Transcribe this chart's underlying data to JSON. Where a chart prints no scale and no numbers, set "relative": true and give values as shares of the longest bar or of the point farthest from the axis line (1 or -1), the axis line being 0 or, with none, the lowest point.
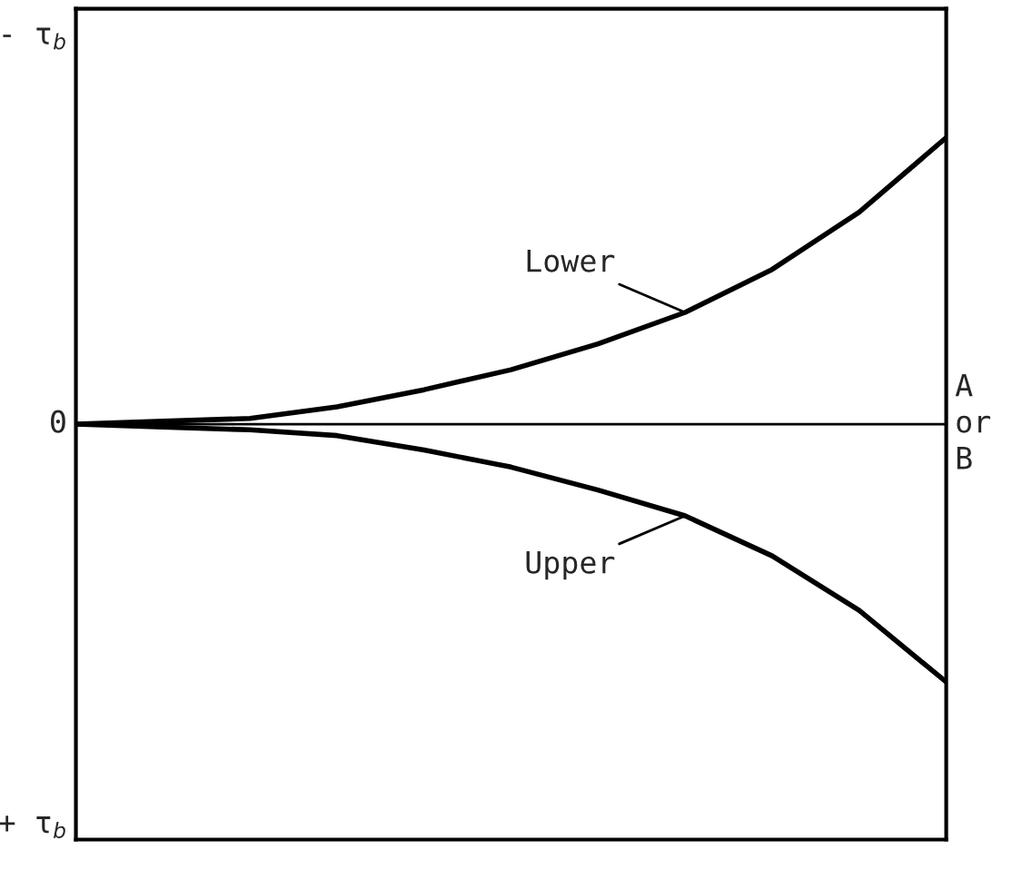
{
  "chart_data": {
    "type": "line",
    "relative": true,
    "categories": [
      null,
      null,
      null,
      null,
      null,
      null,
      null,
      null,
      null,
      null,
      null
    ],
    "series": [
      {
        "name": "Lower",
        "color": "#000000",
        "values": [
          0,
          0.01,
          0.02,
          0.06,
          0.12,
          0.19,
          0.28,
          0.39,
          0.54,
          0.74,
          1
        ]
      },
      {
        "name": "Upper",
        "color": "#000000",
        "values": [
          0,
          -0.01,
          -0.02,
          -0.04,
          -0.09,
          -0.15,
          -0.23,
          -0.32,
          -0.46,
          -0.65,
          -0.9
        ]
      }
    ],
    "ref_lines": [
      {
        "axis": "y",
        "value": 0,
        "color": "#000000"
      }
    ],
    "annotations": [
      "- τ$_{b}$",
      "0",
      "+ τ$_{b}$",
      "A\nor\nB"
    ],
    "legend": false,
    "marker": "none",
    "line_style": "solid"
  }
}
